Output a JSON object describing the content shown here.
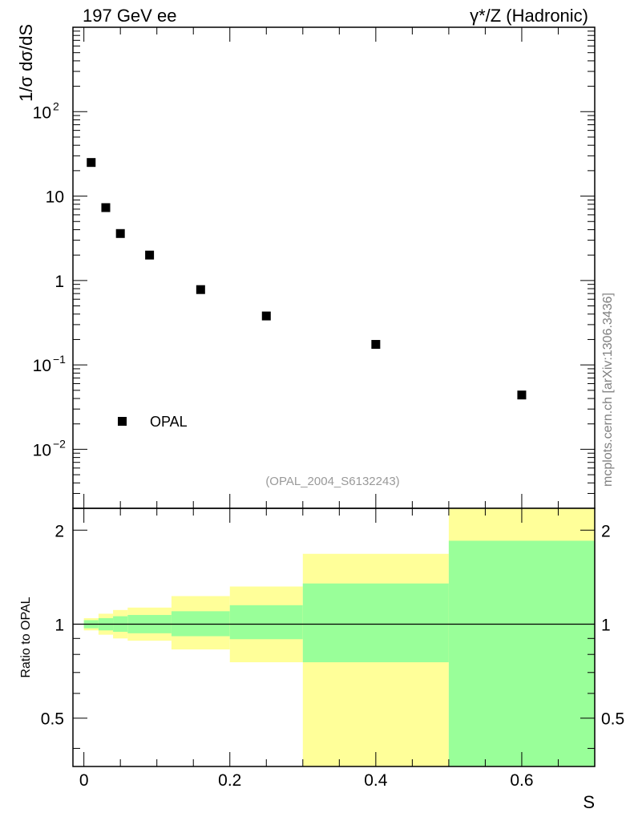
{
  "header": {
    "left_title": "197 GeV ee",
    "right_title": "γ*/Z (Hadronic)"
  },
  "side_label": "mcplots.cern.ch [arXiv:1306.3436]",
  "colors": {
    "inner_band": "#99ff99",
    "outer_band": "#ffff99",
    "marker": "#000000"
  },
  "chart_data": [
    {
      "type": "scatter",
      "ylabel": "1/σ dσ/dS",
      "yscale": "log",
      "ylim": [
        0.002,
        1000
      ],
      "xlim": [
        -0.015,
        0.7
      ],
      "y_ticks": [
        {
          "value": 0.01,
          "base": "10",
          "exp": "−2"
        },
        {
          "value": 0.1,
          "base": "10",
          "exp": "−1"
        },
        {
          "value": 1,
          "base": "1",
          "exp": ""
        },
        {
          "value": 10,
          "base": "10",
          "exp": ""
        },
        {
          "value": 100,
          "base": "10",
          "exp": "2"
        }
      ],
      "series": [
        {
          "name": "OPAL",
          "x": [
            0.01,
            0.03,
            0.05,
            0.09,
            0.16,
            0.25,
            0.4,
            0.6
          ],
          "y": [
            25.0,
            7.3,
            3.6,
            2.0,
            0.78,
            0.38,
            0.175,
            0.044
          ]
        }
      ],
      "legend": "bottom-left",
      "annotation": "(OPAL_2004_S6132243)"
    },
    {
      "type": "area",
      "ylabel": "Ratio to OPAL",
      "xlabel": "S",
      "ylim": [
        0.35,
        2.35
      ],
      "xlim": [
        -0.015,
        0.7
      ],
      "x_ticks": [
        "0",
        "0.2",
        "0.4",
        "0.6"
      ],
      "y_ticks": [
        "0.5",
        "1",
        "2"
      ],
      "reference_line": 1,
      "bands": [
        {
          "x0": 0.0,
          "x1": 0.02,
          "inner": [
            0.97,
            1.03
          ],
          "outer": [
            0.955,
            1.045
          ]
        },
        {
          "x0": 0.02,
          "x1": 0.04,
          "inner": [
            0.955,
            1.045
          ],
          "outer": [
            0.925,
            1.08
          ]
        },
        {
          "x0": 0.04,
          "x1": 0.06,
          "inner": [
            0.945,
            1.06
          ],
          "outer": [
            0.9,
            1.11
          ]
        },
        {
          "x0": 0.06,
          "x1": 0.12,
          "inner": [
            0.935,
            1.07
          ],
          "outer": [
            0.885,
            1.13
          ]
        },
        {
          "x0": 0.12,
          "x1": 0.2,
          "inner": [
            0.915,
            1.1
          ],
          "outer": [
            0.83,
            1.23
          ]
        },
        {
          "x0": 0.2,
          "x1": 0.3,
          "inner": [
            0.895,
            1.15
          ],
          "outer": [
            0.755,
            1.32
          ]
        },
        {
          "x0": 0.3,
          "x1": 0.5,
          "inner": [
            0.755,
            1.35
          ],
          "outer": [
            0.35,
            1.68
          ]
        },
        {
          "x0": 0.5,
          "x1": 0.7,
          "inner": [
            0.35,
            1.85
          ],
          "outer": [
            0.35,
            2.35
          ]
        }
      ]
    }
  ]
}
